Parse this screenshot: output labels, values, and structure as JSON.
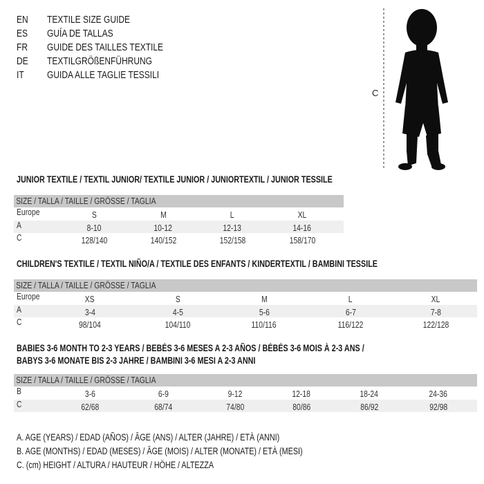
{
  "languages": [
    {
      "code": "EN",
      "text": "TEXTILE SIZE GUIDE"
    },
    {
      "code": "ES",
      "text": "GUÍA DE TALLAS"
    },
    {
      "code": "FR",
      "text": "GUIDE DES TAILLES TEXTILE"
    },
    {
      "code": "DE",
      "text": "TEXTILGRÖßENFÜHRUNG"
    },
    {
      "code": "IT",
      "text": "GUIDA ALLE TAGLIE TESSILI"
    }
  ],
  "figure": {
    "measure_label": "C"
  },
  "junior": {
    "title": "JUNIOR TEXTILE / TEXTIL JUNIOR/ TEXTILE JUNIOR / JUNIORTEXTIL / JUNIOR TESSILE",
    "header": "SIZE / TALLA / TAILLE / GRÖSSE / TAGLIA",
    "rows": [
      {
        "label": "Europe",
        "values": [
          "S",
          "M",
          "L",
          "XL"
        ]
      },
      {
        "label": "A",
        "values": [
          "8-10",
          "10-12",
          "12-13",
          "14-16"
        ]
      },
      {
        "label": "C",
        "values": [
          "128/140",
          "140/152",
          "152/158",
          "158/170"
        ]
      }
    ]
  },
  "children": {
    "title": "CHILDREN'S TEXTILE / TEXTIL NIÑO/A / TEXTILE DES ENFANTS / KINDERTEXTIL / BAMBINI TESSILE",
    "header": "SIZE / TALLA / TAILLE / GRÖSSE / TAGLIA",
    "rows": [
      {
        "label": "Europe",
        "values": [
          "XS",
          "S",
          "M",
          "L",
          "XL"
        ]
      },
      {
        "label": "A",
        "values": [
          "3-4",
          "4-5",
          "5-6",
          "6-7",
          "7-8"
        ]
      },
      {
        "label": "C",
        "values": [
          "98/104",
          "104/110",
          "110/116",
          "116/122",
          "122/128"
        ]
      }
    ]
  },
  "babies": {
    "title_line1": "BABIES 3-6 MONTH TO 2-3 YEARS / BEBÉS 3-6 MESES A 2-3 AÑOS / BÉBÉS 3-6 MOIS À 2-3 ANS /",
    "title_line2": "BABYS 3-6 MONATE BIS 2-3 JAHRE / BAMBINI 3-6 MESI A 2-3 ANNI",
    "header": "SIZE / TALLA / TAILLE / GRÖSSE / TAGLIA",
    "rows": [
      {
        "label": "B",
        "values": [
          "3-6",
          "6-9",
          "9-12",
          "12-18",
          "18-24",
          "24-36"
        ]
      },
      {
        "label": "C",
        "values": [
          "62/68",
          "68/74",
          "74/80",
          "80/86",
          "86/92",
          "92/98"
        ]
      }
    ]
  },
  "legend": [
    "A. AGE (YEARS) / EDAD (AÑOS) / ÂGE (ANS) / ALTER (JAHRE) / ETÀ (ANNI)",
    "B. AGE (MONTHS) / EDAD (MESES) / ÂGE (MOIS) / ALTER (MONATE) / ETÀ (MESI)",
    "C. (cm) HEIGHT / ALTURA / HAUTEUR / HÖHE / ALTEZZA"
  ]
}
